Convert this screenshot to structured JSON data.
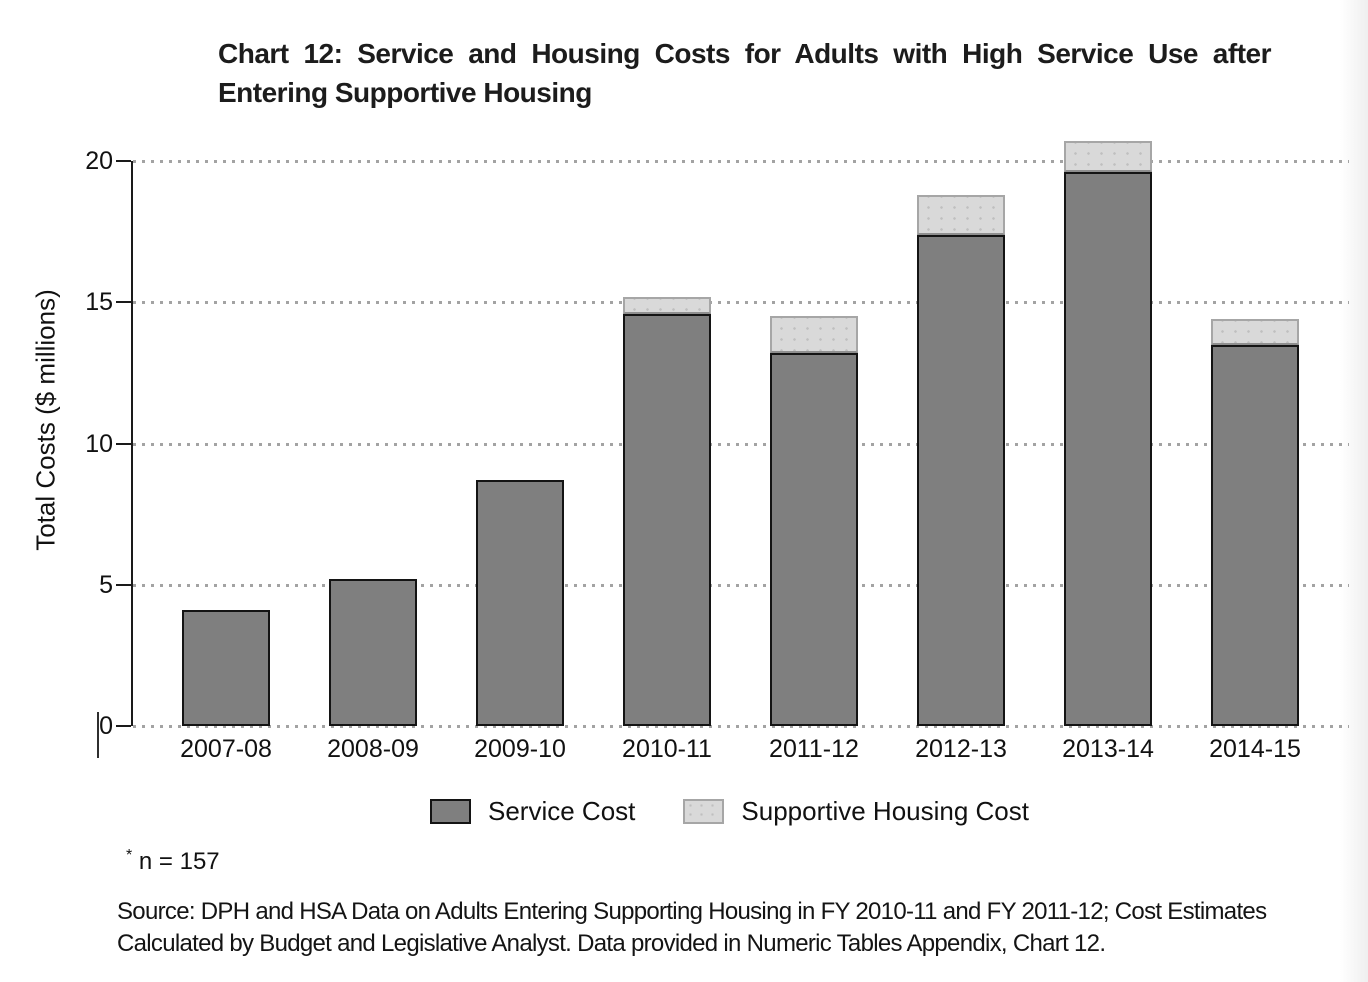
{
  "title": {
    "line1": "Chart 12: Service and Housing Costs for Adults with High Service Use after",
    "line2": "Entering Supportive Housing"
  },
  "chart_data": {
    "type": "bar",
    "stacked": true,
    "title": "Chart 12: Service and Housing Costs for Adults with High Service Use after Entering Supportive Housing",
    "categories": [
      "2007-08",
      "2008-09",
      "2009-10",
      "2010-11",
      "2011-12",
      "2012-13",
      "2013-14",
      "2014-15"
    ],
    "series": [
      {
        "name": "Service Cost",
        "color": "#7f7f7f",
        "border_color": "#141414",
        "values": [
          4.1,
          5.2,
          8.7,
          14.6,
          13.2,
          17.4,
          19.6,
          13.5
        ]
      },
      {
        "name": "Supportive Housing Cost",
        "color": "#d9d9d9",
        "border_color": "#a6a6a6",
        "values": [
          0,
          0,
          0,
          0.6,
          1.3,
          1.4,
          1.1,
          0.9
        ]
      }
    ],
    "xlabel": "",
    "ylabel": "Total Costs ($ millions)",
    "yticks": [
      0,
      5,
      10,
      15,
      20
    ],
    "ylim": [
      0,
      20.75
    ],
    "grid": "horizontal-dotted",
    "legend_position": "bottom"
  },
  "footnote": {
    "star": "*",
    "text": "n = 157"
  },
  "source": {
    "line1": "Source: DPH and HSA Data on Adults Entering Supporting Housing in FY 2010-11 and FY 2011-12; Cost Estimates",
    "line2": "Calculated by Budget and Legislative Analyst. Data provided in Numeric Tables Appendix, Chart 12."
  }
}
